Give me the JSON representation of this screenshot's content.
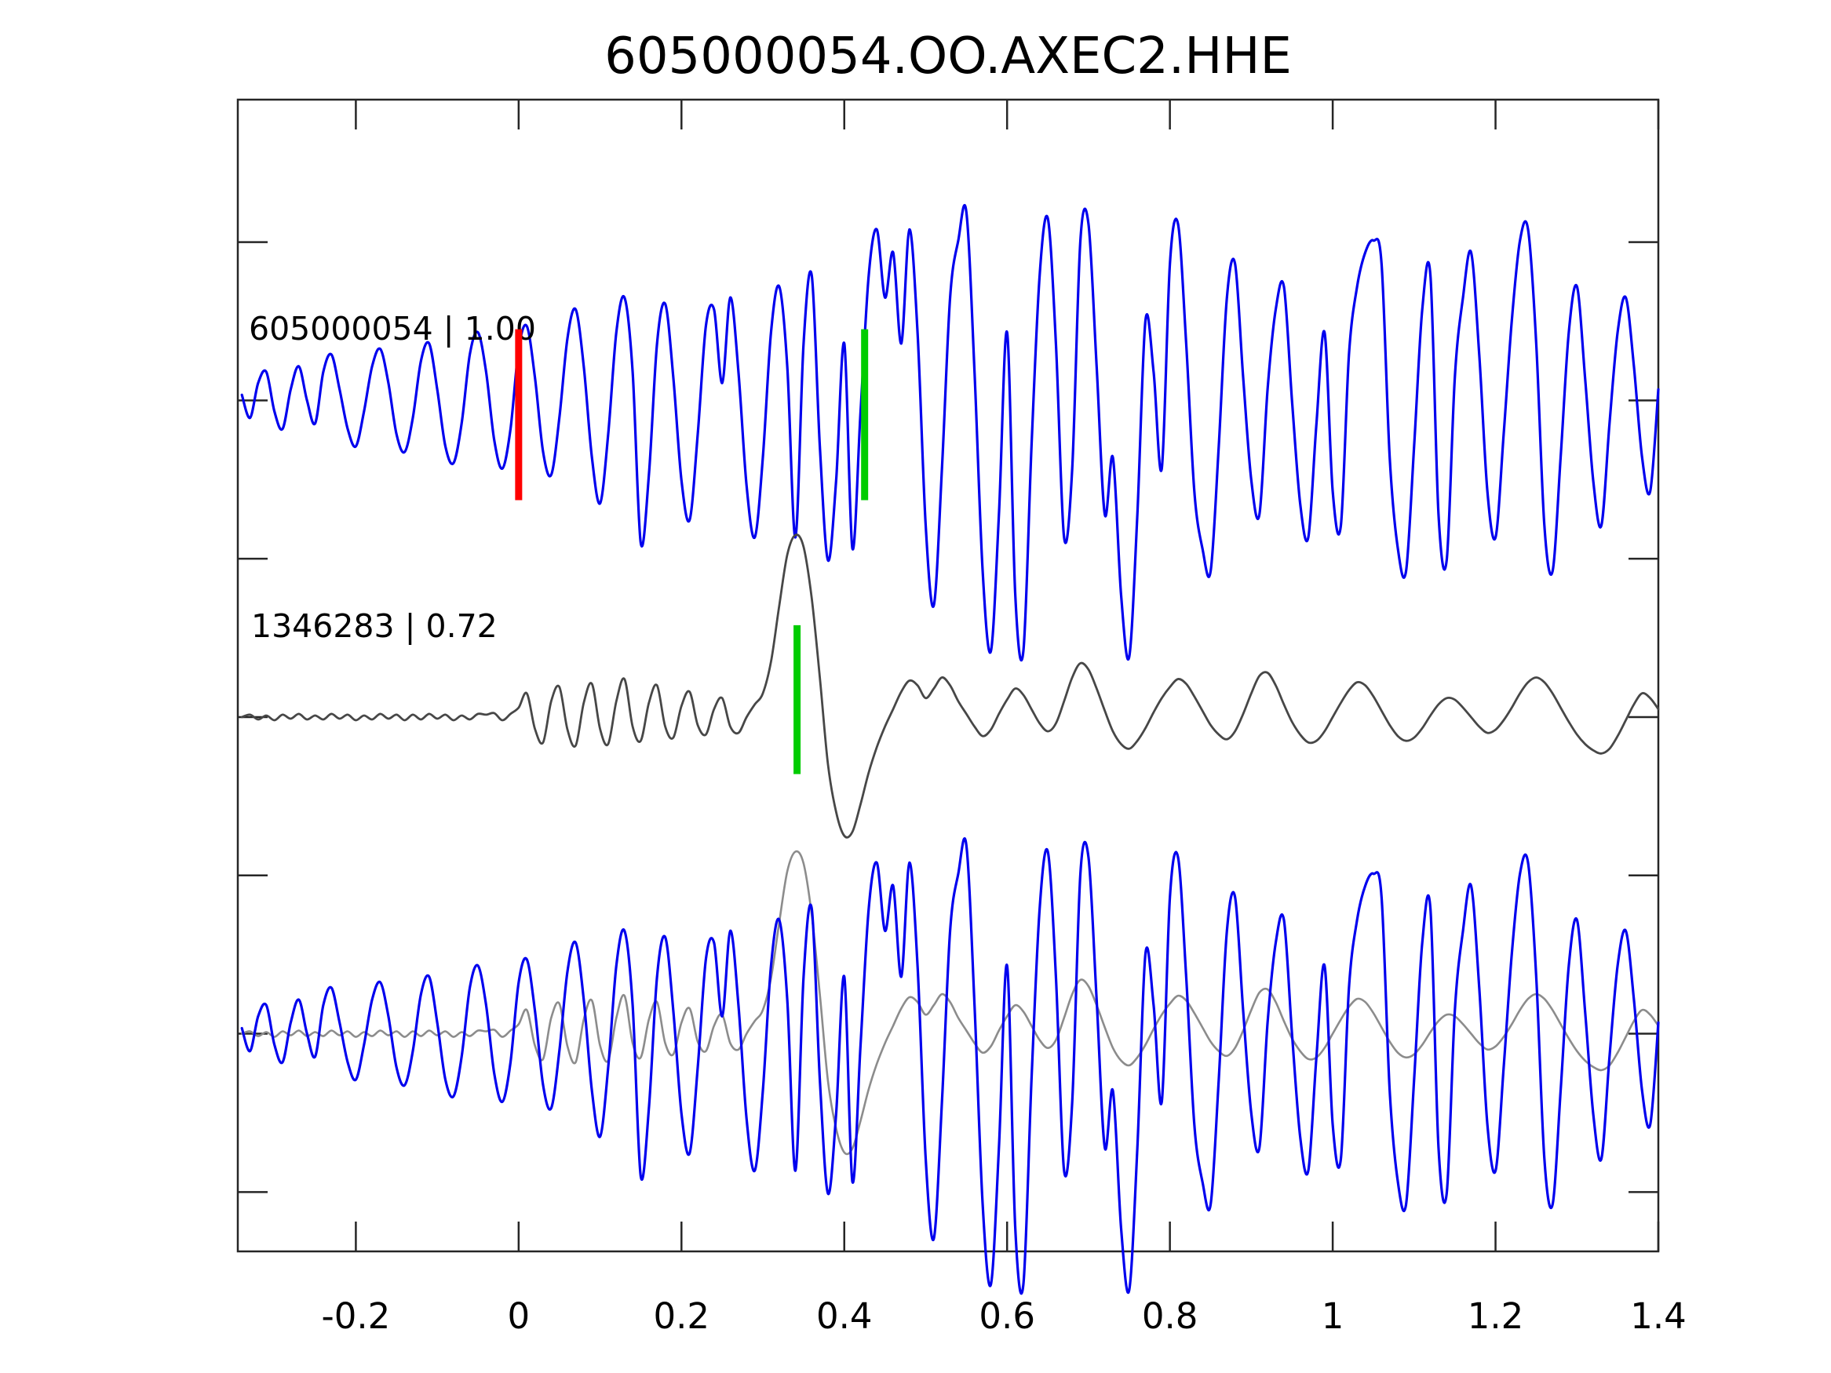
{
  "chart_data": {
    "type": "line",
    "title": "605000054.OO.AXEC2.HHE",
    "xlabel": "",
    "ylabel": "",
    "xlim": [
      -0.345,
      1.4
    ],
    "ylim": [
      -0.075,
      1.38
    ],
    "xticks": [
      -0.2,
      0,
      0.2,
      0.4,
      0.6,
      0.8,
      1,
      1.2,
      1.4
    ],
    "xtick_labels": [
      "-0.2",
      "0",
      "0.2",
      "0.4",
      "0.6",
      "0.8",
      "1",
      "1.2",
      "1.4"
    ],
    "yticks": [
      0,
      0.2,
      0.4,
      0.6,
      0.8,
      1,
      1.2
    ],
    "ytick_labels": [],
    "grid": false,
    "legend": "none",
    "tick_direction": "in",
    "frame_color": "#262626",
    "background": "#ffffff",
    "sampling": {
      "t0": -0.34,
      "dt": 0.01,
      "n": 175
    },
    "series": [
      {
        "id": "detection",
        "label": "605000054 | 1.00",
        "waveform_id": "605000054",
        "correlation": "1.00",
        "color": "#0000ee",
        "line_width": 3.2,
        "values": [
          0.007,
          -0.022,
          0.022,
          0.036,
          -0.014,
          -0.036,
          0.014,
          0.043,
          0,
          -0.029,
          0.036,
          0.058,
          0.014,
          -0.036,
          -0.058,
          -0.014,
          0.043,
          0.065,
          0.022,
          -0.043,
          -0.065,
          -0.022,
          0.05,
          0.072,
          0.014,
          -0.058,
          -0.079,
          -0.029,
          0.058,
          0.086,
          0.036,
          -0.05,
          -0.086,
          -0.036,
          0.065,
          0.094,
          0.029,
          -0.065,
          -0.094,
          -0.022,
          0.079,
          0.115,
          0.043,
          -0.072,
          -0.13,
          -0.043,
          0.086,
          0.13,
          0.036,
          -0.18,
          -0.094,
          0.072,
          0.122,
          0.029,
          -0.101,
          -0.151,
          -0.043,
          0.094,
          0.115,
          0.022,
          0.13,
          0.036,
          -0.108,
          -0.173,
          -0.072,
          0.086,
          0.144,
          0.043,
          -0.173,
          0.072,
          0.158,
          -0.058,
          -0.202,
          -0.101,
          0.072,
          -0.187,
          -0.014,
          0.158,
          0.216,
          0.13,
          0.187,
          0.072,
          0.216,
          0.086,
          -0.158,
          -0.259,
          -0.086,
          0.13,
          0.202,
          0.238,
          0.036,
          -0.216,
          -0.317,
          -0.144,
          0.086,
          -0.245,
          -0.317,
          -0.058,
          0.158,
          0.23,
          0.072,
          -0.173,
          -0.086,
          0.202,
          0.223,
          0.043,
          -0.144,
          -0.072,
          -0.245,
          -0.324,
          -0.144,
          0.101,
          0.036,
          -0.086,
          0.173,
          0.223,
          0.072,
          -0.115,
          -0.187,
          -0.216,
          -0.058,
          0.13,
          0.173,
          0.029,
          -0.101,
          -0.144,
          0.014,
          0.115,
          0.144,
          0,
          -0.13,
          -0.173,
          -0.029,
          0.086,
          -0.115,
          -0.158,
          0.058,
          0.144,
          0.187,
          0.202,
          0.173,
          -0.072,
          -0.187,
          -0.216,
          -0.058,
          0.115,
          0.158,
          -0.144,
          -0.202,
          0.029,
          0.13,
          0.187,
          0.058,
          -0.115,
          -0.173,
          -0.043,
          0.101,
          0.202,
          0.216,
          0.072,
          -0.158,
          -0.216,
          -0.072,
          0.086,
          0.144,
          0.029,
          -0.101,
          -0.158,
          -0.029,
          0.086,
          0.13,
          0.043,
          -0.072,
          -0.115,
          0.014
        ]
      },
      {
        "id": "template",
        "label": "1346283 | 0.72",
        "waveform_id": "1346283",
        "correlation": "0.72",
        "color": "#474747",
        "line_width": 2.8,
        "values": [
          0,
          0.003,
          -0.003,
          0.002,
          -0.004,
          0.003,
          -0.002,
          0.004,
          -0.003,
          0.002,
          -0.003,
          0.004,
          -0.002,
          0.003,
          -0.004,
          0.002,
          -0.003,
          0.004,
          -0.002,
          0.003,
          -0.004,
          0.003,
          -0.003,
          0.004,
          -0.002,
          0.003,
          -0.004,
          0.002,
          -0.003,
          0.004,
          0.003,
          0.005,
          -0.004,
          0.004,
          0.012,
          0.03,
          -0.015,
          -0.032,
          0.02,
          0.038,
          -0.016,
          -0.036,
          0.018,
          0.042,
          -0.015,
          -0.034,
          0.02,
          0.048,
          -0.012,
          -0.03,
          0.018,
          0.04,
          -0.012,
          -0.026,
          0.014,
          0.032,
          -0.01,
          -0.022,
          0.01,
          0.024,
          -0.012,
          -0.02,
          0,
          0.016,
          0.03,
          0.07,
          0.14,
          0.205,
          0.23,
          0.215,
          0.15,
          0.05,
          -0.06,
          -0.12,
          -0.15,
          -0.145,
          -0.11,
          -0.07,
          -0.038,
          -0.012,
          0.01,
          0.032,
          0.046,
          0.04,
          0.024,
          0.036,
          0.05,
          0.04,
          0.02,
          0.004,
          -0.012,
          -0.024,
          -0.016,
          0.004,
          0.022,
          0.036,
          0.028,
          0.01,
          -0.008,
          -0.018,
          -0.008,
          0.02,
          0.05,
          0.068,
          0.06,
          0.036,
          0.008,
          -0.018,
          -0.034,
          -0.04,
          -0.03,
          -0.014,
          0.006,
          0.024,
          0.038,
          0.048,
          0.042,
          0.026,
          0.008,
          -0.01,
          -0.022,
          -0.028,
          -0.018,
          0.004,
          0.03,
          0.052,
          0.056,
          0.04,
          0.016,
          -0.006,
          -0.022,
          -0.032,
          -0.03,
          -0.018,
          0,
          0.018,
          0.034,
          0.044,
          0.04,
          0.026,
          0.008,
          -0.01,
          -0.024,
          -0.03,
          -0.026,
          -0.014,
          0.002,
          0.016,
          0.024,
          0.022,
          0.012,
          0,
          -0.012,
          -0.02,
          -0.016,
          -0.004,
          0.012,
          0.03,
          0.044,
          0.05,
          0.044,
          0.03,
          0.012,
          -0.006,
          -0.022,
          -0.034,
          -0.042,
          -0.046,
          -0.04,
          -0.024,
          -0.004,
          0.016,
          0.03,
          0.024,
          0.01
        ]
      }
    ],
    "rows": [
      {
        "name": "detection-row",
        "offset": 1.0,
        "draw": [
          {
            "series": "detection"
          }
        ]
      },
      {
        "name": "template-row",
        "offset": 0.6,
        "draw": [
          {
            "series": "template"
          }
        ]
      },
      {
        "name": "overlay-row",
        "offset": 0.2,
        "draw": [
          {
            "series": "template",
            "color": "#8c8c8c",
            "line_width": 2.6
          },
          {
            "series": "detection"
          }
        ]
      }
    ],
    "markers": [
      {
        "name": "detection-zero-time-marker",
        "row": 0,
        "t": 0.0,
        "color": "#ff0000",
        "v_from": 0.874,
        "v_to": 1.09,
        "width": 9
      },
      {
        "name": "detection-pick-marker",
        "row": 0,
        "t": 0.425,
        "color": "#00cc00",
        "v_from": 0.874,
        "v_to": 1.09,
        "width": 9
      },
      {
        "name": "template-pick-marker",
        "row": 1,
        "t": 0.342,
        "color": "#00cc00",
        "v_from": 0.528,
        "v_to": 0.716,
        "width": 9
      }
    ]
  }
}
